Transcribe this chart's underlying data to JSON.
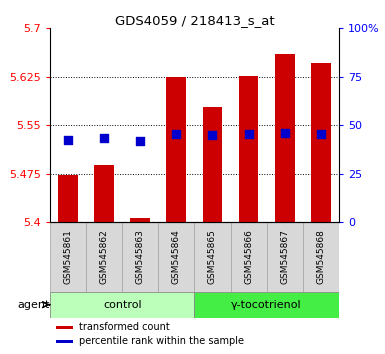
{
  "title": "GDS4059 / 218413_s_at",
  "samples": [
    "GSM545861",
    "GSM545862",
    "GSM545863",
    "GSM545864",
    "GSM545865",
    "GSM545866",
    "GSM545867",
    "GSM545868"
  ],
  "red_tops": [
    5.473,
    5.488,
    5.407,
    5.625,
    5.578,
    5.627,
    5.66,
    5.647
  ],
  "blue_values": [
    5.527,
    5.53,
    5.525,
    5.537,
    5.535,
    5.537,
    5.538,
    5.536
  ],
  "bar_bottom": 5.4,
  "ylim": [
    5.4,
    5.7
  ],
  "yticks": [
    5.4,
    5.475,
    5.55,
    5.625,
    5.7
  ],
  "right_yticks": [
    0,
    25,
    50,
    75,
    100
  ],
  "right_ytick_labels": [
    "0",
    "25",
    "50",
    "75",
    "100%"
  ],
  "bar_color": "#CC0000",
  "blue_color": "#0000CC",
  "bar_width": 0.55,
  "group_labels": [
    "control",
    "γ-tocotrienol"
  ],
  "group_colors": [
    "#bbffbb",
    "#44ee44"
  ],
  "agent_label": "agent",
  "legend_items": [
    "transformed count",
    "percentile rank within the sample"
  ],
  "grid_color": "black",
  "sample_bg_color": "#d8d8d8",
  "plot_bg": "white"
}
